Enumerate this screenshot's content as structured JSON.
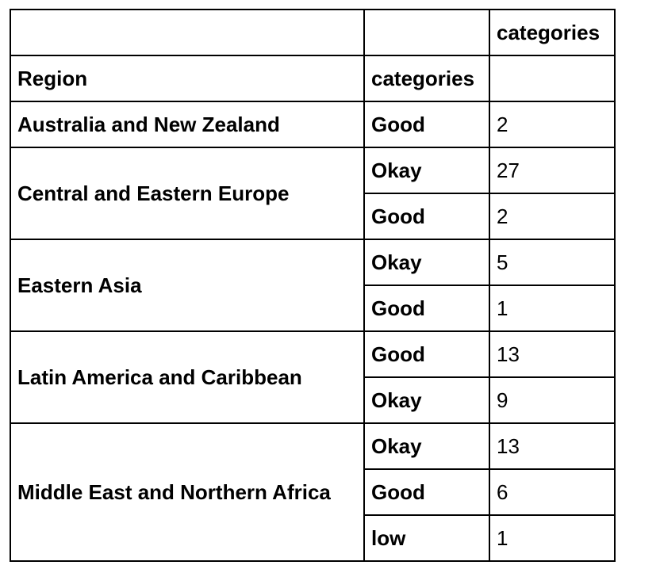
{
  "table": {
    "header_top": {
      "count_column": "categories"
    },
    "header_index": {
      "region": "Region",
      "category": "categories"
    },
    "groups": [
      {
        "region": "Australia and New Zealand",
        "rows": [
          {
            "category": "Good",
            "count": "2"
          }
        ]
      },
      {
        "region": "Central and Eastern Europe",
        "rows": [
          {
            "category": "Okay",
            "count": "27"
          },
          {
            "category": "Good",
            "count": "2"
          }
        ]
      },
      {
        "region": "Eastern Asia",
        "rows": [
          {
            "category": "Okay",
            "count": "5"
          },
          {
            "category": "Good",
            "count": "1"
          }
        ]
      },
      {
        "region": "Latin America and Caribbean",
        "rows": [
          {
            "category": "Good",
            "count": "13"
          },
          {
            "category": "Okay",
            "count": "9"
          }
        ]
      },
      {
        "region": "Middle East and Northern Africa",
        "rows": [
          {
            "category": "Okay",
            "count": "13"
          },
          {
            "category": "Good",
            "count": "6"
          },
          {
            "category": "low",
            "count": "1"
          }
        ]
      }
    ]
  }
}
